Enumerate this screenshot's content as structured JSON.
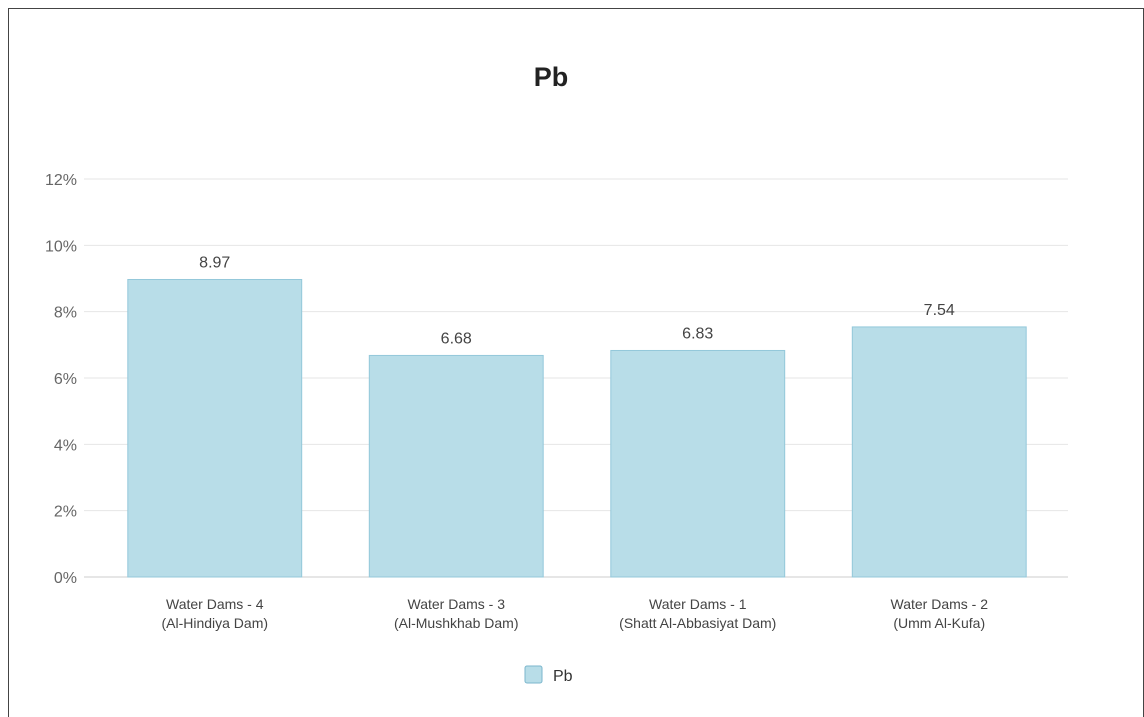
{
  "chart_data": {
    "type": "bar",
    "title": "Pb",
    "categories": [
      [
        "Water Dams - 4",
        "(Al-Hindiya Dam)"
      ],
      [
        "Water Dams - 3",
        "(Al-Mushkhab Dam)"
      ],
      [
        "Water Dams - 1",
        "(Shatt Al-Abbasiyat Dam)"
      ],
      [
        "Water Dams - 2",
        "(Umm Al-Kufa)"
      ]
    ],
    "series": [
      {
        "name": "Pb",
        "values": [
          8.97,
          6.68,
          6.83,
          7.54
        ]
      }
    ],
    "data_labels": [
      "8.97",
      "6.68",
      "6.83",
      "7.54"
    ],
    "y_ticks": [
      "0%",
      "2%",
      "4%",
      "6%",
      "8%",
      "10%",
      "12%"
    ],
    "ylim": [
      0,
      12
    ],
    "grid": true,
    "legend": {
      "position": "bottom-center",
      "entries": [
        "Pb"
      ]
    },
    "colors": {
      "bar_fill": "#b8dde8",
      "bar_stroke": "#94c8da",
      "grid": "#e6e6e6",
      "axis": "#cccccc"
    }
  }
}
